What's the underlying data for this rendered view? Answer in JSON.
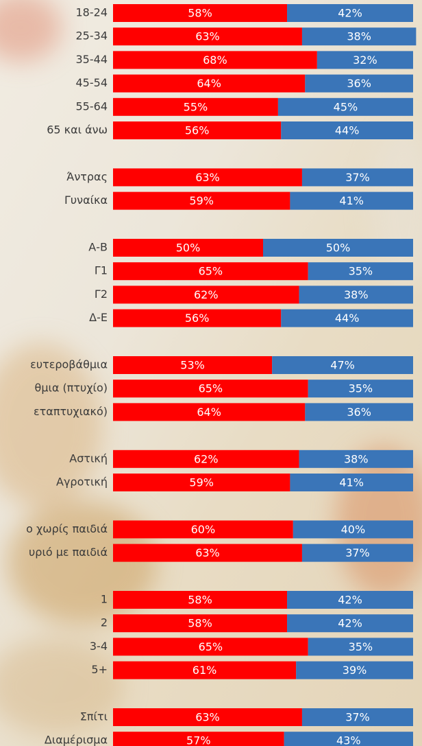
{
  "chart_data": {
    "type": "stacked-bar-horizontal",
    "colors": [
      "#ff0000",
      "#3a75b8"
    ],
    "groups": [
      {
        "categories": [
          "18-24",
          "25-34",
          "35-44",
          "45-54",
          "55-64",
          "65 και άνω"
        ],
        "series": [
          {
            "values": [
              58,
              63,
              68,
              64,
              55,
              56
            ],
            "value_labels": [
              "58%",
              "63%",
              "68%",
              "64%",
              "55%",
              "56%"
            ]
          },
          {
            "values": [
              42,
              38,
              32,
              36,
              45,
              44
            ],
            "value_labels": [
              "42%",
              "38%",
              "32%",
              "36%",
              "45%",
              "44%"
            ]
          }
        ]
      },
      {
        "categories": [
          "Άντρας",
          "Γυναίκα"
        ],
        "series": [
          {
            "values": [
              63,
              59
            ],
            "value_labels": [
              "63%",
              "59%"
            ]
          },
          {
            "values": [
              37,
              41
            ],
            "value_labels": [
              "37%",
              "41%"
            ]
          }
        ]
      },
      {
        "categories": [
          "Α-Β",
          "Γ1",
          "Γ2",
          "Δ-Ε"
        ],
        "series": [
          {
            "values": [
              50,
              65,
              62,
              56
            ],
            "value_labels": [
              "50%",
              "65%",
              "62%",
              "56%"
            ]
          },
          {
            "values": [
              50,
              35,
              38,
              44
            ],
            "value_labels": [
              "50%",
              "35%",
              "38%",
              "44%"
            ]
          }
        ]
      },
      {
        "categories": [
          "ευτεροβάθμια",
          "θμια (πτυχίο)",
          "εταπτυχιακό)"
        ],
        "series": [
          {
            "values": [
              53,
              65,
              64
            ],
            "value_labels": [
              "53%",
              "65%",
              "64%"
            ]
          },
          {
            "values": [
              47,
              35,
              36
            ],
            "value_labels": [
              "47%",
              "35%",
              "36%"
            ]
          }
        ]
      },
      {
        "categories": [
          "Αστική",
          "Αγροτική"
        ],
        "series": [
          {
            "values": [
              62,
              59
            ],
            "value_labels": [
              "62%",
              "59%"
            ]
          },
          {
            "values": [
              38,
              41
            ],
            "value_labels": [
              "38%",
              "41%"
            ]
          }
        ]
      },
      {
        "categories": [
          "ο χωρίς παιδιά",
          "υριό με παιδιά"
        ],
        "series": [
          {
            "values": [
              60,
              63
            ],
            "value_labels": [
              "60%",
              "63%"
            ]
          },
          {
            "values": [
              40,
              37
            ],
            "value_labels": [
              "40%",
              "37%"
            ]
          }
        ]
      },
      {
        "categories": [
          "1",
          "2",
          "3-4",
          "5+"
        ],
        "series": [
          {
            "values": [
              58,
              58,
              65,
              61
            ],
            "value_labels": [
              "58%",
              "58%",
              "65%",
              "61%"
            ]
          },
          {
            "values": [
              42,
              42,
              35,
              39
            ],
            "value_labels": [
              "42%",
              "42%",
              "35%",
              "39%"
            ]
          }
        ]
      },
      {
        "categories": [
          "Σπίτι",
          "Διαμέρισμα"
        ],
        "series": [
          {
            "values": [
              63,
              57
            ],
            "value_labels": [
              "63%",
              "57%"
            ]
          },
          {
            "values": [
              37,
              43
            ],
            "value_labels": [
              "37%",
              "43%"
            ]
          }
        ]
      }
    ]
  }
}
